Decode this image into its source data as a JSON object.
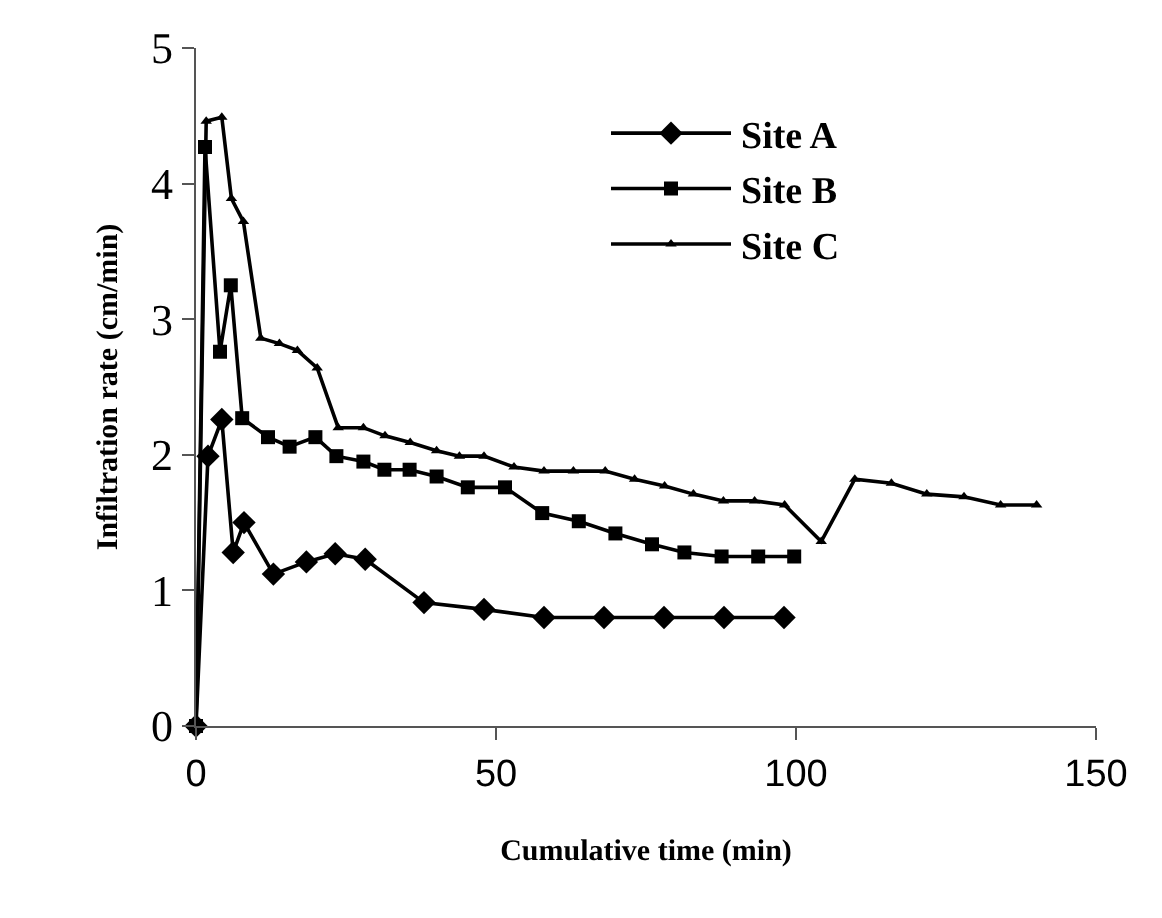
{
  "chart_data": {
    "type": "line",
    "xlabel": "Cumulative time (min)",
    "ylabel": "Infiltration rate (cm/min)",
    "xlim": [
      0,
      150
    ],
    "xticks": [
      0,
      50,
      100,
      150
    ],
    "ylim": [
      0,
      5
    ],
    "yticks": [
      0,
      1,
      2,
      3,
      4,
      5
    ],
    "legend": "top right",
    "line_style": "solid",
    "series": [
      {
        "name": "Site A",
        "color": "#000000",
        "marker": "diamond",
        "x": [
          0,
          2,
          4.3,
          6.2,
          8,
          12.9,
          18.4,
          23.2,
          28.2,
          38,
          48,
          58,
          68,
          78,
          88,
          98
        ],
        "values": [
          0,
          1.99,
          2.26,
          1.28,
          1.5,
          1.12,
          1.21,
          1.27,
          1.23,
          0.91,
          0.86,
          0.8,
          0.8,
          0.8,
          0.8,
          0.8
        ]
      },
      {
        "name": "Site B",
        "color": "#000000",
        "marker": "square",
        "x": [
          0,
          1.5,
          4,
          5.8,
          7.7,
          12,
          15.6,
          19.9,
          23.4,
          27.9,
          31.4,
          35.6,
          40.1,
          45.3,
          51.5,
          57.7,
          63.8,
          69.9,
          76,
          81.4,
          87.6,
          93.7,
          99.7
        ],
        "values": [
          0,
          4.27,
          2.76,
          3.25,
          2.27,
          2.13,
          2.06,
          2.13,
          1.99,
          1.95,
          1.89,
          1.89,
          1.84,
          1.76,
          1.76,
          1.57,
          1.51,
          1.42,
          1.34,
          1.28,
          1.25,
          1.25,
          1.25
        ]
      },
      {
        "name": "Site C",
        "color": "#000000",
        "marker": "triangle",
        "x": [
          0,
          1.7,
          4.3,
          5.9,
          7.9,
          10.8,
          13.9,
          16.9,
          20.2,
          23.7,
          27.9,
          31.5,
          35.7,
          40.1,
          43.9,
          48,
          53,
          58,
          62.9,
          68.2,
          73.1,
          78.1,
          82.9,
          87.9,
          93.1,
          98.1,
          104.2,
          109.8,
          115.9,
          121.8,
          128,
          134.1,
          140.1
        ],
        "values": [
          0,
          4.46,
          4.49,
          3.89,
          3.72,
          2.86,
          2.82,
          2.77,
          2.64,
          2.2,
          2.2,
          2.14,
          2.09,
          2.03,
          1.99,
          1.99,
          1.91,
          1.88,
          1.88,
          1.88,
          1.82,
          1.77,
          1.71,
          1.66,
          1.66,
          1.63,
          1.36,
          1.82,
          1.79,
          1.71,
          1.69,
          1.63,
          1.63
        ]
      }
    ]
  }
}
